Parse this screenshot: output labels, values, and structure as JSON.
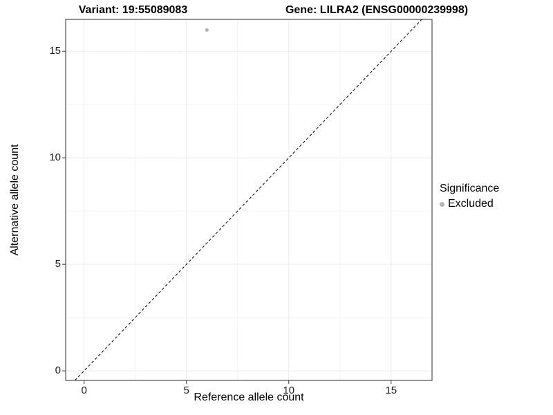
{
  "header": {
    "title_left": "Variant: 19:55089083",
    "title_right": "Gene: LILRA2 (ENSG00000239998)"
  },
  "legend": {
    "title": "Significance",
    "items": [
      {
        "label": "Excluded",
        "color": "#b5b5b5"
      }
    ]
  },
  "chart_data": {
    "type": "scatter",
    "title": "Variant: 19:55089083 — Gene: LILRA2 (ENSG00000239998)",
    "xlabel": "Reference allele count",
    "ylabel": "Alternative allele count",
    "xlim": [
      -0.9,
      17
    ],
    "ylim": [
      -0.45,
      16.5
    ],
    "xticks": [
      0,
      5,
      10,
      15
    ],
    "yticks": [
      0,
      5,
      10,
      15
    ],
    "grid": true,
    "legend_position": "right",
    "series": [
      {
        "name": "Excluded",
        "color": "#b5b5b5",
        "points": [
          {
            "x": 6,
            "y": 16
          }
        ]
      }
    ],
    "reference_line": {
      "type": "abline",
      "slope": 1,
      "intercept": 0,
      "style": "dashed",
      "color": "#000000"
    },
    "colors": {
      "grid_major": "#ebebeb",
      "grid_minor": "#f4f4f4",
      "panel_border": "#2b2b2b",
      "background": "#ffffff"
    }
  }
}
